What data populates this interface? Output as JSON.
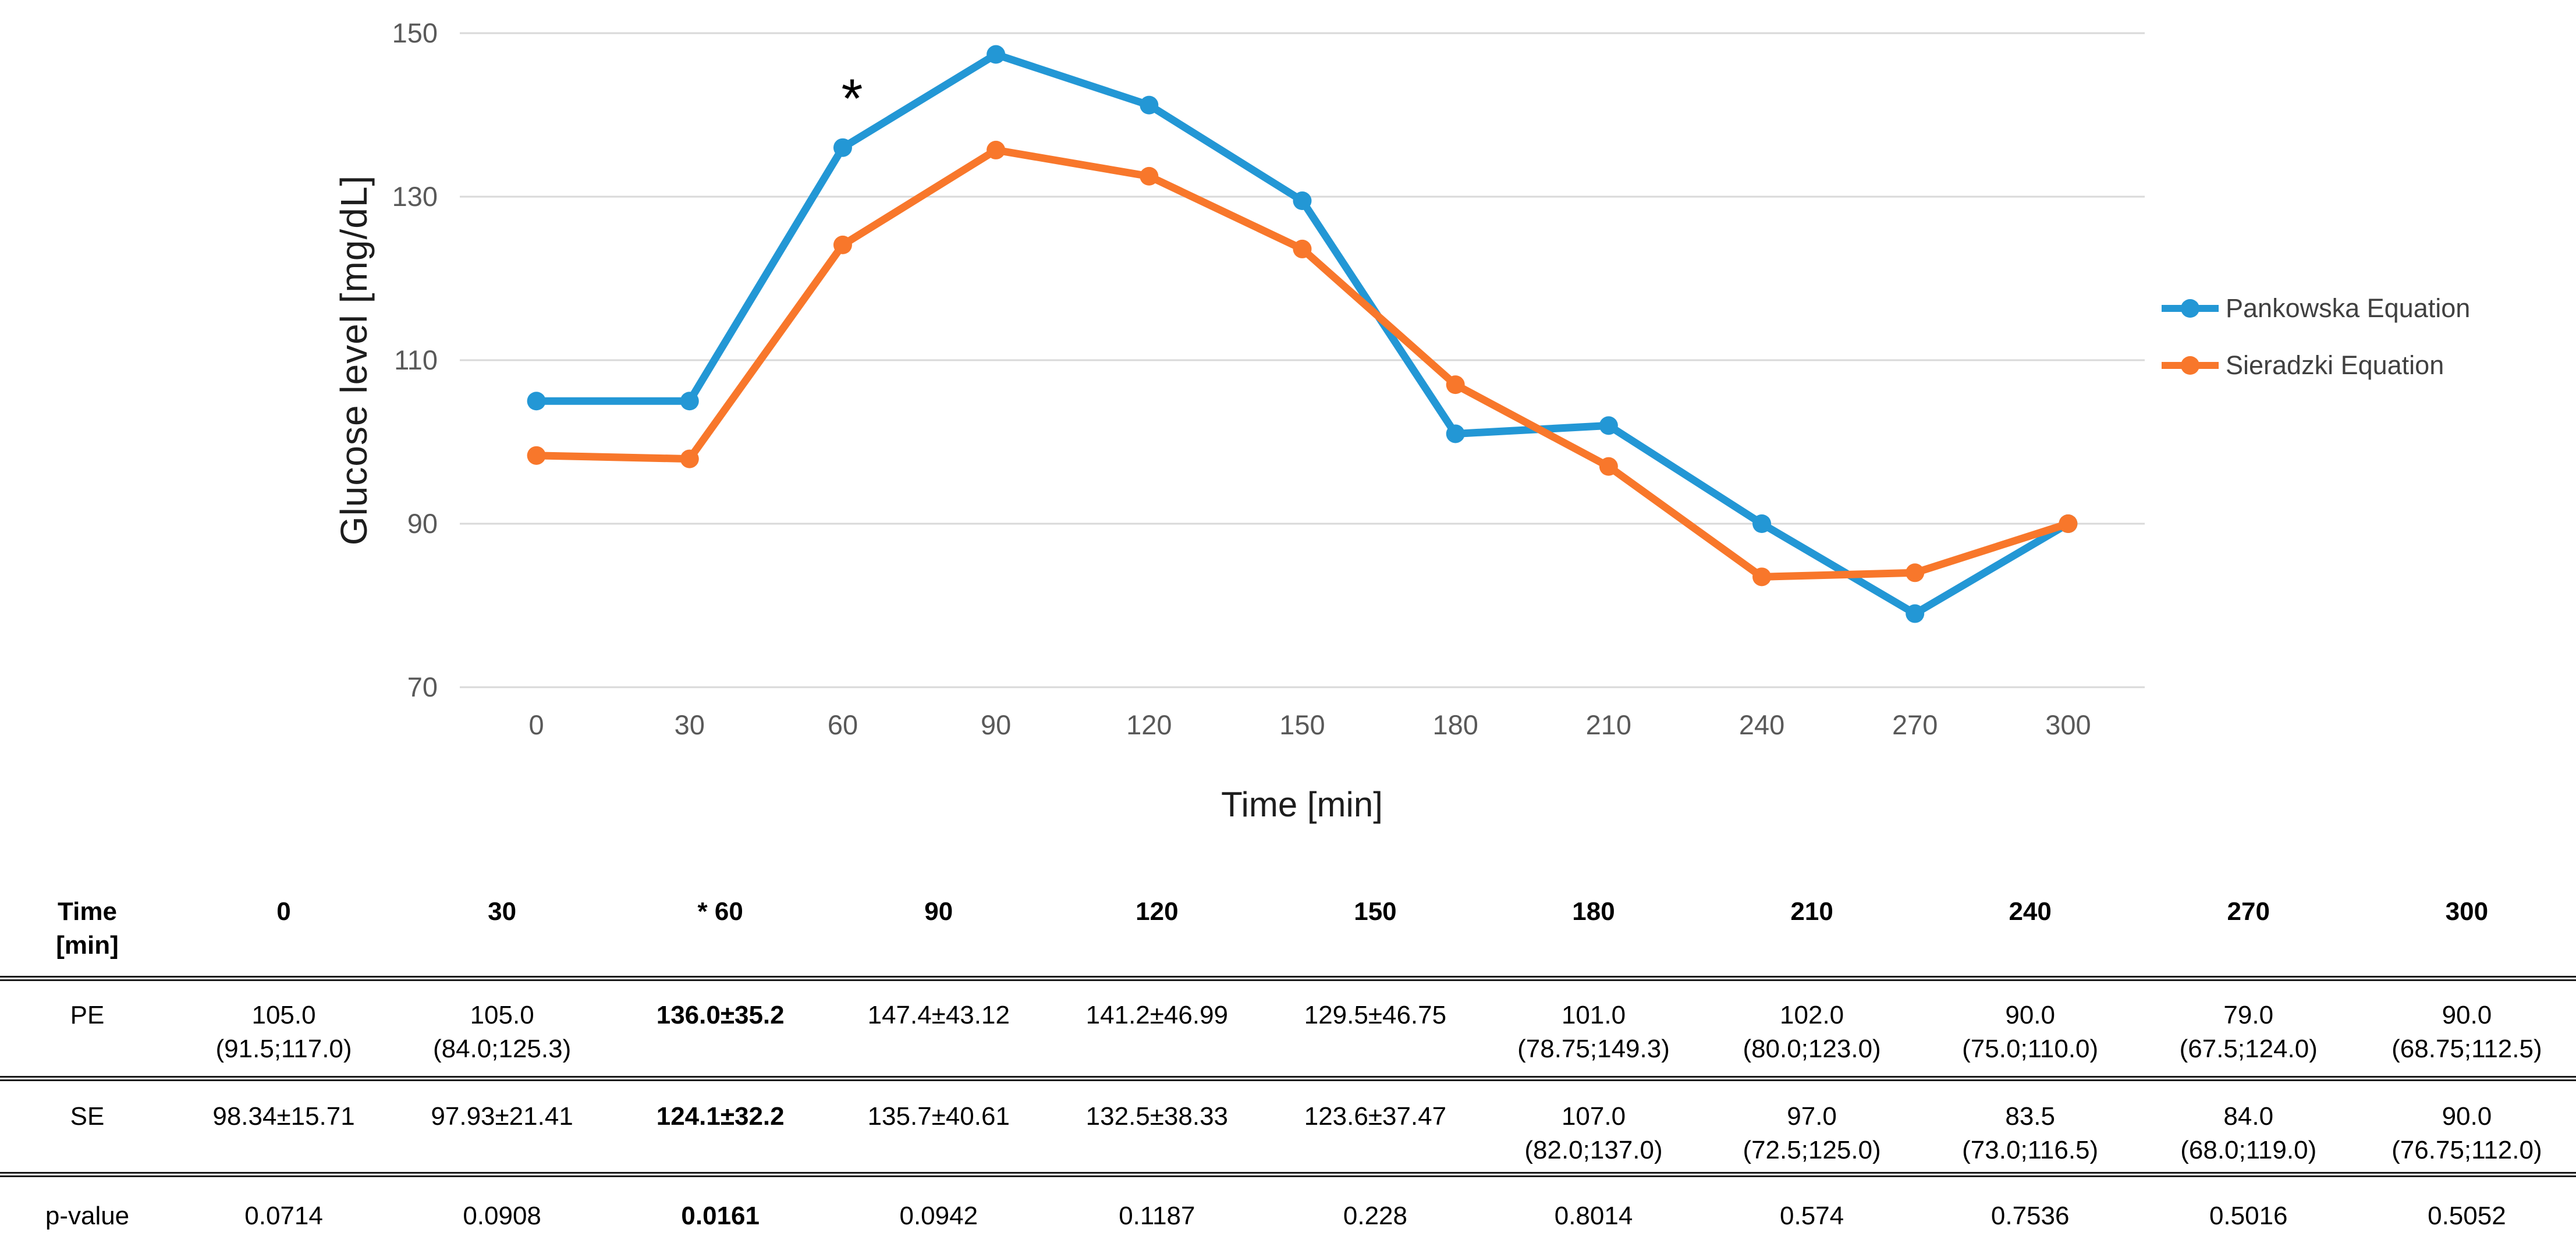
{
  "chart_data": {
    "type": "line",
    "x": [
      0,
      30,
      60,
      90,
      120,
      150,
      180,
      210,
      240,
      270,
      300
    ],
    "series": [
      {
        "name": "Pankowska Equation",
        "color": "#2397D5",
        "values": [
          105.0,
          105.0,
          136.0,
          147.4,
          141.2,
          129.5,
          101.0,
          102.0,
          90.0,
          79.0,
          90.0
        ]
      },
      {
        "name": "Sieradzki Equation",
        "color": "#F8772B",
        "values": [
          98.34,
          97.93,
          124.1,
          135.7,
          132.5,
          123.6,
          107.0,
          97.0,
          83.5,
          84.0,
          90.0
        ]
      }
    ],
    "title": "",
    "xlabel": "Time [min]",
    "ylabel": "Glucose level [mg/dL]",
    "ylim": [
      70,
      150
    ],
    "yticks": [
      150,
      130,
      110,
      90,
      70
    ],
    "grid": "horizontal-only",
    "gridline_color": "#D9D9D9",
    "tick_label_color": "#595959",
    "legend_position": "right",
    "annotation": {
      "text": "*",
      "x": 60,
      "series_index": 0
    }
  },
  "table": {
    "corner_label": [
      "Time",
      "[min]"
    ],
    "columns": [
      "0",
      "30",
      "* 60",
      "90",
      "120",
      "150",
      "180",
      "210",
      "240",
      "270",
      "300"
    ],
    "bold_column_index": 2,
    "rows": [
      {
        "label": "PE",
        "cells": [
          {
            "main": "105.0",
            "sub": "(91.5;117.0)"
          },
          {
            "main": "105.0",
            "sub": "(84.0;125.3)"
          },
          {
            "main": "136.0±35.2",
            "bold": true
          },
          {
            "main": "147.4±43.12"
          },
          {
            "main": "141.2±46.99"
          },
          {
            "main": "129.5±46.75"
          },
          {
            "main": "101.0",
            "sub": "(78.75;149.3)"
          },
          {
            "main": "102.0",
            "sub": "(80.0;123.0)"
          },
          {
            "main": "90.0",
            "sub": "(75.0;110.0)"
          },
          {
            "main": "79.0",
            "sub": "(67.5;124.0)"
          },
          {
            "main": "90.0",
            "sub": "(68.75;112.5)"
          }
        ]
      },
      {
        "label": "SE",
        "cells": [
          {
            "main": "98.34±15.71"
          },
          {
            "main": "97.93±21.41"
          },
          {
            "main": "124.1±32.2",
            "bold": true
          },
          {
            "main": "135.7±40.61"
          },
          {
            "main": "132.5±38.33"
          },
          {
            "main": "123.6±37.47"
          },
          {
            "main": "107.0",
            "sub": "(82.0;137.0)"
          },
          {
            "main": "97.0",
            "sub": "(72.5;125.0)"
          },
          {
            "main": "83.5",
            "sub": "(73.0;116.5)"
          },
          {
            "main": "84.0",
            "sub": "(68.0;119.0)"
          },
          {
            "main": "90.0",
            "sub": "(76.75;112.0)"
          }
        ]
      },
      {
        "label": "p-value",
        "cells": [
          {
            "main": "0.0714"
          },
          {
            "main": "0.0908"
          },
          {
            "main": "0.0161",
            "bold": true
          },
          {
            "main": "0.0942"
          },
          {
            "main": "0.1187"
          },
          {
            "main": "0.228"
          },
          {
            "main": "0.8014"
          },
          {
            "main": "0.574"
          },
          {
            "main": "0.7536"
          },
          {
            "main": "0.5016"
          },
          {
            "main": "0.5052"
          }
        ]
      }
    ]
  }
}
